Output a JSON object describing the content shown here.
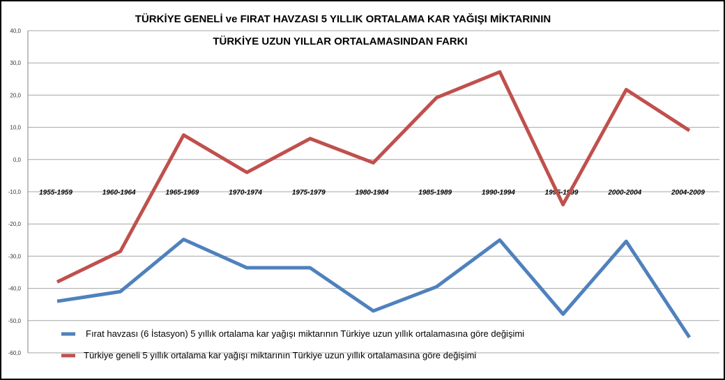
{
  "chart_data": {
    "type": "line",
    "title_line1": "TÜRKİYE GENELİ ve FIRAT HAVZASI 5 YILLIK ORTALAMA KAR YAĞIŞI MİKTARININ",
    "title_line2": "TÜRKİYE UZUN YILLAR ORTALAMASINDAN FARKI",
    "categories": [
      "1955-1959",
      "1960-1964",
      "1965-1969",
      "1970-1974",
      "1975-1979",
      "1980-1984",
      "1985-1989",
      "1990-1994",
      "1995-1999",
      "2000-2004",
      "2004-2009"
    ],
    "y_ticks": [
      "40,0",
      "30,0",
      "20,0",
      "10,0",
      "0,0",
      "-10,0",
      "-20,0",
      "-30,0",
      "-40,0",
      "-50,0",
      "-60,0"
    ],
    "ylim": [
      -60,
      40
    ],
    "grid": true,
    "legend_position": "bottom-left",
    "series": [
      {
        "name": "Fırat havzası (6 İstasyon) 5 yıllık ortalama kar yağışı miktarının  Türkiye uzun yıllık ortalamasına göre değişimi",
        "color": "#4f81bd",
        "values": [
          -44,
          -41,
          -24.8,
          -33.6,
          -33.6,
          -47,
          -39.5,
          -25,
          -48,
          -25.4,
          -55.2
        ]
      },
      {
        "name": "Türkiye geneli 5 yıllık ortalama kar yağışı miktarının Türkiye uzun yıllık ortalamasına göre değişimi",
        "color": "#c0504d",
        "values": [
          -38,
          -28.5,
          7.6,
          -4,
          6.5,
          -1,
          19.2,
          27.2,
          -14,
          21.7,
          9
        ]
      }
    ]
  }
}
